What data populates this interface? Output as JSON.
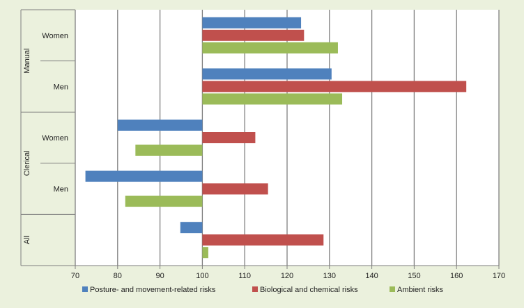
{
  "chart_data": {
    "type": "bar",
    "orientation": "horizontal",
    "baseline": 100,
    "xlim": [
      70,
      170
    ],
    "x_ticks": [
      70,
      80,
      90,
      100,
      110,
      120,
      130,
      140,
      150,
      160,
      170
    ],
    "grid": true,
    "legend_position": "bottom",
    "groups": [
      {
        "label": "Manual",
        "categories": [
          "Women",
          "Men"
        ]
      },
      {
        "label": "Clerical",
        "categories": [
          "Women",
          "Men"
        ]
      },
      {
        "label": "All",
        "categories": [
          ""
        ]
      }
    ],
    "series": [
      {
        "name": "Posture- and movement-related risks",
        "color": "#4f81bd",
        "values": [
          123.3,
          130.5,
          80,
          72.4,
          94.8
        ]
      },
      {
        "name": "Biological and chemical risks",
        "color": "#c0504d",
        "values": [
          124,
          162.3,
          112.5,
          115.5,
          128.6
        ]
      },
      {
        "name": "Ambient risks",
        "color": "#9bbb59",
        "values": [
          132,
          133,
          84.2,
          81.8,
          101.4
        ]
      }
    ]
  }
}
